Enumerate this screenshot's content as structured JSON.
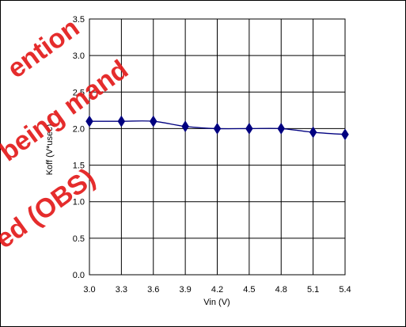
{
  "chart_data": {
    "type": "line",
    "x": [
      3.0,
      3.3,
      3.6,
      3.9,
      4.2,
      4.5,
      4.8,
      5.1,
      5.4
    ],
    "series": [
      {
        "values": [
          2.1,
          2.1,
          2.1,
          2.03,
          2.0,
          2.0,
          2.0,
          1.95,
          1.92
        ]
      }
    ],
    "xlabel": "Vin (V)",
    "ylabel": "Koff (V*usec)",
    "xlim": [
      3.0,
      5.4
    ],
    "ylim": [
      0.0,
      3.5
    ],
    "x_ticks": [
      "3.0",
      "3.3",
      "3.6",
      "3.9",
      "4.2",
      "4.5",
      "4.8",
      "5.1",
      "5.4"
    ],
    "y_ticks": [
      "0.0",
      "0.5",
      "1.0",
      "1.5",
      "2.0",
      "2.5",
      "3.0",
      "3.5"
    ],
    "grid": true,
    "marker": "diamond",
    "color": "#000080"
  },
  "watermark": {
    "lines": [
      "ention",
      "being mand",
      "ed (OBS)"
    ],
    "color": "#e31b1b"
  }
}
